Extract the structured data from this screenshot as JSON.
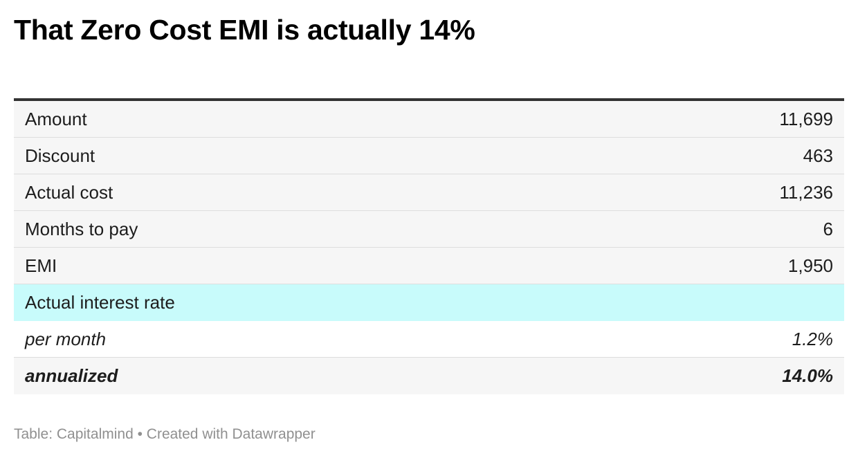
{
  "chart_data": {
    "type": "table",
    "title": "That Zero Cost EMI is actually 14%",
    "rows": [
      {
        "label": "Amount",
        "value": "11,699"
      },
      {
        "label": "Discount",
        "value": "463"
      },
      {
        "label": "Actual cost",
        "value": "11,236"
      },
      {
        "label": "Months to pay",
        "value": "6"
      },
      {
        "label": "EMI",
        "value": "1,950"
      },
      {
        "label": "Actual interest rate",
        "value": ""
      },
      {
        "label": "per month",
        "value": "1.2%"
      },
      {
        "label": "annualized",
        "value": "14.0%"
      }
    ],
    "highlight_color": "#c8fbfb"
  },
  "footer": {
    "source_text": "Table: Capitalmind • Created with Datawrapper"
  }
}
